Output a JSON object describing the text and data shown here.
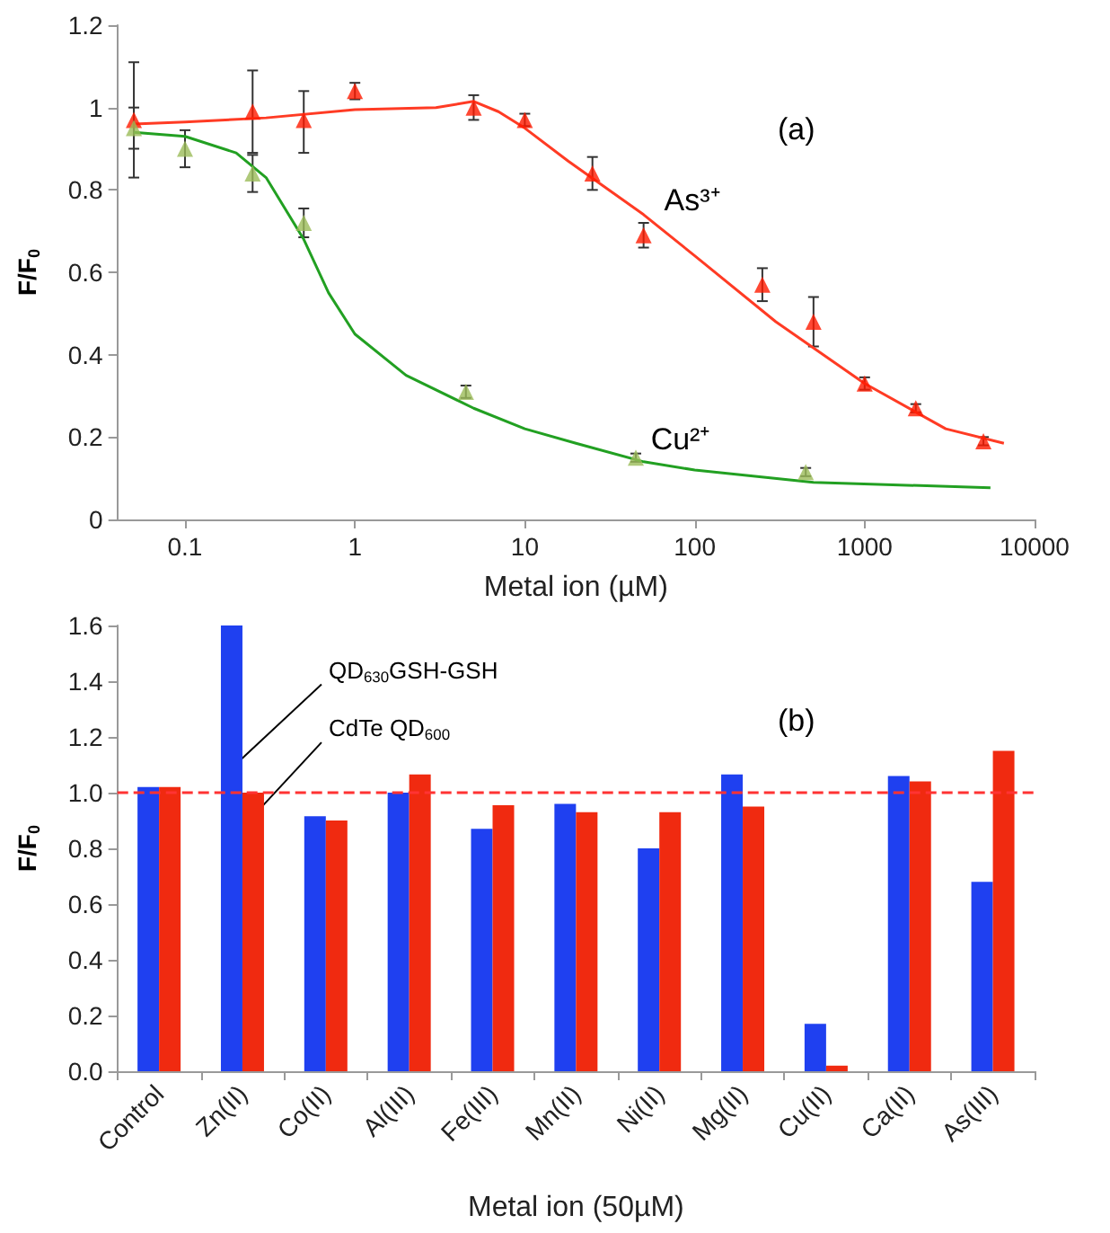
{
  "chart_data": [
    {
      "type": "scatter",
      "xlabel": "Metal ion (µM)",
      "ylabel": "F/F$_{0}$",
      "log": "x",
      "xlim": [
        0.04,
        10000
      ],
      "xticks": [
        0.1,
        1,
        10,
        100,
        1000,
        10000
      ],
      "ylim": [
        0,
        1.2
      ],
      "yticks": [
        0,
        0.2,
        0.4,
        0.6,
        0.8,
        1,
        1.2
      ],
      "grid": false,
      "legend": false,
      "marker": "triangle",
      "annotations": [
        "(a)",
        {
          "text": "As³⁺",
          "x": 60,
          "y": 0.72
        },
        {
          "text": "Cu²⁺",
          "x": 50,
          "y": 0.14
        }
      ],
      "series": [
        {
          "type": "line",
          "marker": "none",
          "color": "#ff3b24",
          "x": [
            0.05,
            0.1,
            0.3,
            1,
            3,
            5,
            7,
            10,
            18,
            50,
            100,
            300,
            1000,
            3000,
            6600
          ],
          "values": [
            0.96,
            0.965,
            0.975,
            0.995,
            1,
            1.015,
            0.99,
            0.95,
            0.87,
            0.74,
            0.64,
            0.48,
            0.33,
            0.22,
            0.185
          ]
        },
        {
          "type": "line",
          "marker": "none",
          "color": "#22a022",
          "x": [
            0.05,
            0.1,
            0.2,
            0.3,
            0.5,
            0.7,
            1,
            2,
            5,
            10,
            20,
            50,
            100,
            500,
            5500
          ],
          "values": [
            0.94,
            0.93,
            0.89,
            0.83,
            0.68,
            0.55,
            0.45,
            0.35,
            0.27,
            0.22,
            0.185,
            0.14,
            0.12,
            0.09,
            0.077
          ]
        },
        {
          "color": "#ff1a00",
          "x": [
            0.05,
            0.25,
            0.5,
            1,
            5,
            10,
            25,
            50,
            250,
            500,
            1000,
            2000,
            5000
          ],
          "values": [
            0.97,
            0.99,
            0.97,
            1.04,
            1,
            0.97,
            0.84,
            0.69,
            0.57,
            0.48,
            0.33,
            0.27,
            0.19
          ],
          "errors": [
            [
              0.83,
              1.11
            ],
            0.1,
            [
              0.89,
              1.04
            ],
            0.02,
            0.03,
            0.015,
            0.04,
            0.03,
            0.04,
            0.06,
            0.015,
            0.01,
            0.01
          ]
        },
        {
          "color": "#9bbb59",
          "x": [
            0.05,
            0.1,
            0.25,
            0.5,
            4.5,
            45,
            450
          ],
          "values": [
            0.95,
            0.9,
            0.84,
            0.72,
            0.31,
            0.15,
            0.115
          ],
          "errors": [
            0.05,
            0.045,
            0.045,
            0.035,
            0.015,
            0.01,
            0.01
          ]
        }
      ]
    },
    {
      "type": "bar",
      "xlabel": "Metal ion (50µM)",
      "ylabel": "F/F$_{0}$",
      "ylim": [
        0,
        1.6
      ],
      "yticks": [
        {
          "value": 0,
          "label": "0.0"
        },
        {
          "value": 0.2,
          "label": "0.2"
        },
        {
          "value": 0.4,
          "label": "0.4"
        },
        {
          "value": 0.6,
          "label": "0.6"
        },
        {
          "value": 0.8,
          "label": "0.8"
        },
        {
          "value": 1,
          "label": "1.0"
        },
        {
          "value": 1.2,
          "label": "1.2"
        },
        {
          "value": 1.4,
          "label": "1.4"
        },
        {
          "value": 1.6,
          "label": "1.6"
        }
      ],
      "grid": false,
      "legend": false,
      "categories": [
        "Control",
        "Zn(II)",
        "Co(II)",
        "Al(III)",
        "Fe(III)",
        "Mn(II)",
        "Ni(II)",
        "Mg(II)",
        "Cu(II)",
        "Ca(II)",
        "As(III)"
      ],
      "annotations": [
        "(b)"
      ],
      "ref_lines": [
        {
          "axis": "y",
          "value": 1,
          "color": "#ff3333",
          "line_style": "dashed"
        }
      ],
      "series": [
        {
          "name": "QD$_{630}$GSH-GSH",
          "color": "#1f40f0",
          "values": [
            1.02,
            1.6,
            0.915,
            1,
            0.87,
            0.96,
            0.8,
            1.065,
            0.17,
            1.06,
            0.68
          ]
        },
        {
          "name": "CdTe QD$_{600}$",
          "color": "#f02a10",
          "values": [
            1.02,
            1,
            0.9,
            1.065,
            0.955,
            0.93,
            0.93,
            0.95,
            0.02,
            1.04,
            1.15
          ]
        }
      ]
    }
  ]
}
